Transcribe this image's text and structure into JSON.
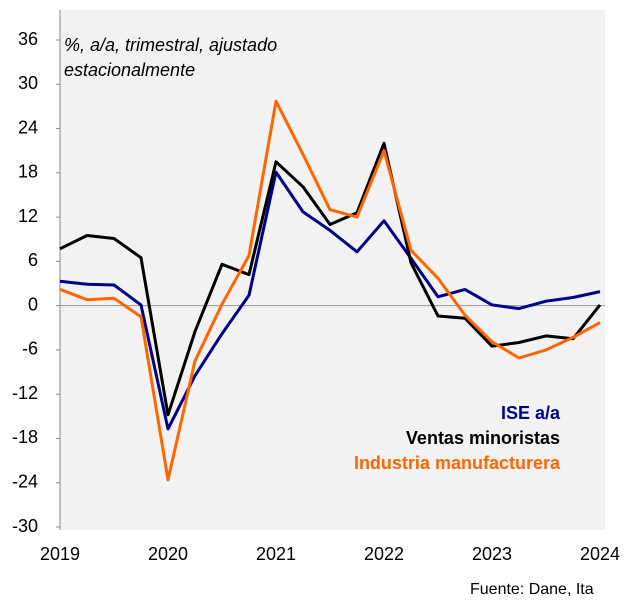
{
  "chart_data": {
    "type": "line",
    "annotations": [
      "%, a/a, trimestral, ajustado",
      "estacionalmente"
    ],
    "source": "Fuente: Dane, Ita",
    "categories": [
      "2019",
      null,
      null,
      null,
      "2020",
      null,
      null,
      null,
      "2021",
      null,
      null,
      null,
      "2022",
      null,
      null,
      null,
      "2023",
      null,
      null,
      null,
      "2024"
    ],
    "series": [
      {
        "name": "ISE a/a",
        "color": "#00008b",
        "values": [
          3.3,
          2.9,
          2.8,
          0.1,
          -16.7,
          -9.5,
          -3.8,
          1.4,
          18.1,
          12.7,
          10.2,
          7.3,
          11.5,
          6.4,
          1.2,
          2.2,
          0.1,
          -0.4,
          0.6,
          1.1,
          1.9
        ]
      },
      {
        "name": "Ventas minoristas",
        "color": "#000000",
        "values": [
          7.7,
          9.5,
          9.1,
          6.5,
          -14.8,
          -3.5,
          5.6,
          4.2,
          19.5,
          16.1,
          11.0,
          12.6,
          22.0,
          5.8,
          -1.4,
          -1.7,
          -5.5,
          -5.0,
          -4.1,
          -4.5,
          0.1
        ]
      },
      {
        "name": "Industria manufacturera",
        "color": "#ff6600",
        "values": [
          2.2,
          0.8,
          1.0,
          -1.5,
          -23.6,
          -7.5,
          0.2,
          6.8,
          27.7,
          20.5,
          13.0,
          12.0,
          21.0,
          7.5,
          3.7,
          -1.3,
          -4.9,
          -7.1,
          -6.0,
          -4.3,
          -2.3
        ]
      }
    ],
    "ylim": [
      -30,
      36
    ],
    "yticks": [
      -30,
      -24,
      -18,
      -12,
      -6,
      0,
      6,
      12,
      18,
      24,
      30,
      36
    ],
    "zero_line": true
  }
}
